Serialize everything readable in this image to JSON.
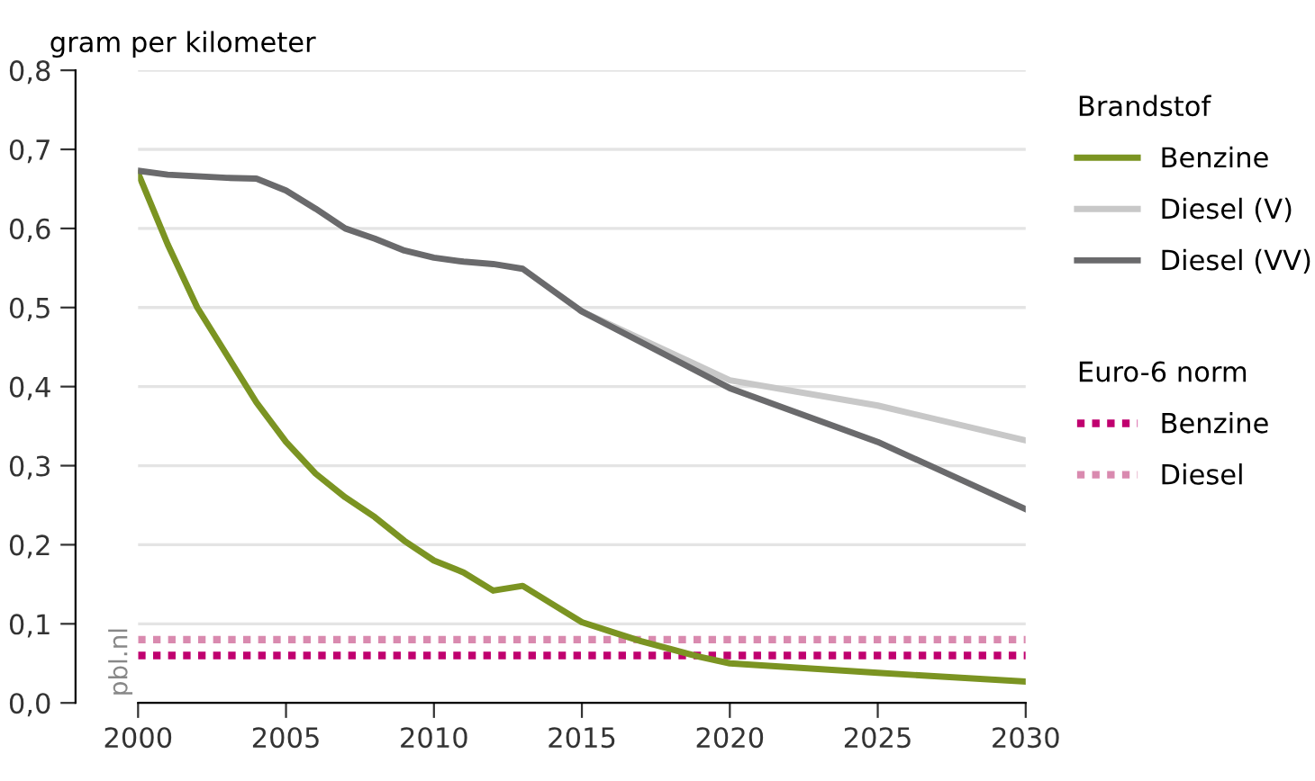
{
  "chart_data": {
    "type": "line",
    "ylabel": "gram per kilometer",
    "legend_title": "Brandstof",
    "xlim": [
      2000,
      2030
    ],
    "xticks": [
      2000,
      2005,
      2010,
      2015,
      2020,
      2025,
      2030
    ],
    "ylim": [
      0,
      0.8
    ],
    "yticks": [
      {
        "value": 0,
        "label": "0,0"
      },
      {
        "value": 0.1,
        "label": "0,1"
      },
      {
        "value": 0.2,
        "label": "0,2"
      },
      {
        "value": 0.3,
        "label": "0,3"
      },
      {
        "value": 0.4,
        "label": "0,4"
      },
      {
        "value": 0.5,
        "label": "0,5"
      },
      {
        "value": 0.6,
        "label": "0,6"
      },
      {
        "value": 0.7,
        "label": "0,7"
      },
      {
        "value": 0.8,
        "label": "0,8"
      }
    ],
    "grid": "y",
    "legend": "right",
    "line_style": "solid",
    "series": [
      {
        "name": "Benzine",
        "color": "#7b9422",
        "x": [
          2000,
          2001,
          2002,
          2003,
          2004,
          2005,
          2006,
          2007,
          2008,
          2009,
          2010,
          2011,
          2012,
          2013,
          2014,
          2015,
          2016,
          2017,
          2018,
          2019,
          2020,
          2025,
          2030
        ],
        "values": [
          0.67,
          0.58,
          0.5,
          0.44,
          0.38,
          0.33,
          0.29,
          0.26,
          0.235,
          0.205,
          0.18,
          0.165,
          0.142,
          0.148,
          0.125,
          0.102,
          0.09,
          0.078,
          0.068,
          0.058,
          0.05,
          0.038,
          0.027
        ]
      },
      {
        "name": "Diesel (V)",
        "color": "#c8c8c8",
        "x": [
          2015,
          2020,
          2025,
          2030
        ],
        "values": [
          0.495,
          0.408,
          0.376,
          0.332
        ]
      },
      {
        "name": "Diesel (VV)",
        "color": "#6a6a6c",
        "x": [
          2000,
          2001,
          2002,
          2003,
          2004,
          2005,
          2006,
          2007,
          2008,
          2009,
          2010,
          2011,
          2012,
          2013,
          2014,
          2015,
          2020,
          2025,
          2030
        ],
        "values": [
          0.673,
          0.668,
          0.666,
          0.664,
          0.663,
          0.648,
          0.625,
          0.6,
          0.587,
          0.572,
          0.563,
          0.558,
          0.555,
          0.549,
          0.522,
          0.495,
          0.398,
          0.33,
          0.245
        ]
      },
      {
        "name": "Benzine",
        "color": "#c0006f",
        "line_style": "dotted",
        "x": [
          2000,
          2030
        ],
        "values": [
          0.06,
          0.06
        ]
      },
      {
        "name": "Diesel",
        "color": "#d98aaf",
        "line_style": "dotted",
        "x": [
          2000,
          2030
        ],
        "values": [
          0.08,
          0.08
        ]
      }
    ],
    "annotations": [
      "Euro-6 norm",
      "pbl.nl"
    ]
  }
}
